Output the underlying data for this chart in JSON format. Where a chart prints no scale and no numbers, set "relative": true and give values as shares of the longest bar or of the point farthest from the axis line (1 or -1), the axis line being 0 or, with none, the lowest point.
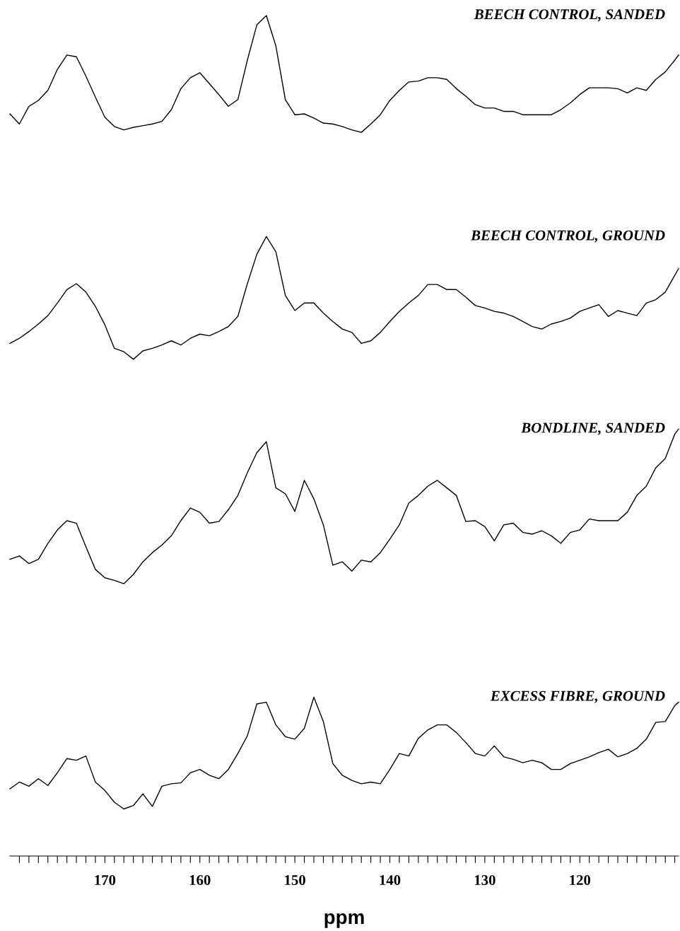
{
  "chart_data": {
    "type": "line",
    "relative": true,
    "tick_labels": "x",
    "xlim": [
      180,
      109.6
    ],
    "grid": false,
    "legend": false,
    "xlabel": "ppm",
    "xticks": [
      {
        "value": 179,
        "label": null
      },
      {
        "value": 178,
        "label": null
      },
      {
        "value": 177,
        "label": null
      },
      {
        "value": 176,
        "label": null
      },
      {
        "value": 175,
        "label": null
      },
      {
        "value": 174,
        "label": null
      },
      {
        "value": 173,
        "label": null
      },
      {
        "value": 172,
        "label": null
      },
      {
        "value": 171,
        "label": null
      },
      170,
      {
        "value": 169,
        "label": null
      },
      {
        "value": 168,
        "label": null
      },
      {
        "value": 167,
        "label": null
      },
      {
        "value": 166,
        "label": null
      },
      {
        "value": 165,
        "label": null
      },
      {
        "value": 164,
        "label": null
      },
      {
        "value": 163,
        "label": null
      },
      {
        "value": 162,
        "label": null
      },
      {
        "value": 161,
        "label": null
      },
      160,
      {
        "value": 159,
        "label": null
      },
      {
        "value": 158,
        "label": null
      },
      {
        "value": 157,
        "label": null
      },
      {
        "value": 156,
        "label": null
      },
      {
        "value": 155,
        "label": null
      },
      {
        "value": 154,
        "label": null
      },
      {
        "value": 153,
        "label": null
      },
      {
        "value": 152,
        "label": null
      },
      {
        "value": 151,
        "label": null
      },
      150,
      {
        "value": 149,
        "label": null
      },
      {
        "value": 148,
        "label": null
      },
      {
        "value": 147,
        "label": null
      },
      {
        "value": 146,
        "label": null
      },
      {
        "value": 145,
        "label": null
      },
      {
        "value": 144,
        "label": null
      },
      {
        "value": 143,
        "label": null
      },
      {
        "value": 142,
        "label": null
      },
      {
        "value": 141,
        "label": null
      },
      140,
      {
        "value": 139,
        "label": null
      },
      {
        "value": 138,
        "label": null
      },
      {
        "value": 137,
        "label": null
      },
      {
        "value": 136,
        "label": null
      },
      {
        "value": 135,
        "label": null
      },
      {
        "value": 134,
        "label": null
      },
      {
        "value": 133,
        "label": null
      },
      {
        "value": 132,
        "label": null
      },
      {
        "value": 131,
        "label": null
      },
      130,
      {
        "value": 129,
        "label": null
      },
      {
        "value": 128,
        "label": null
      },
      {
        "value": 127,
        "label": null
      },
      {
        "value": 126,
        "label": null
      },
      {
        "value": 125,
        "label": null
      },
      {
        "value": 124,
        "label": null
      },
      {
        "value": 123,
        "label": null
      },
      {
        "value": 122,
        "label": null
      },
      {
        "value": 121,
        "label": null
      },
      120,
      {
        "value": 119,
        "label": null
      },
      {
        "value": 118,
        "label": null
      },
      {
        "value": 117,
        "label": null
      },
      {
        "value": 116,
        "label": null
      },
      {
        "value": 115,
        "label": null
      },
      {
        "value": 114,
        "label": null
      },
      {
        "value": 113,
        "label": null
      },
      {
        "value": 112,
        "label": null
      },
      {
        "value": 111,
        "label": null
      },
      {
        "value": 110,
        "label": null
      }
    ],
    "x": [
      180,
      179,
      178,
      177,
      176,
      175,
      174,
      173,
      172,
      171,
      170,
      169,
      168,
      167,
      166,
      165,
      164,
      163,
      162,
      161,
      160,
      159,
      158,
      157,
      156,
      155,
      154,
      153,
      152,
      151,
      150,
      149,
      148,
      147,
      146,
      145,
      144,
      143,
      142,
      141,
      140,
      139,
      138,
      137,
      136,
      135,
      134,
      133,
      132,
      131,
      130,
      129,
      128,
      127,
      126,
      125,
      124,
      123,
      122,
      121,
      120,
      119,
      118,
      117,
      116,
      115,
      114,
      113,
      112,
      111,
      110,
      109.6
    ],
    "series": [
      {
        "name": "BEECH CONTROL, SANDED",
        "color": "#000000",
        "values": [
          0.883,
          0.871,
          0.892,
          0.899,
          0.911,
          0.936,
          0.953,
          0.951,
          0.928,
          0.903,
          0.879,
          0.868,
          0.864,
          0.867,
          0.869,
          0.871,
          0.874,
          0.888,
          0.913,
          0.926,
          0.932,
          0.919,
          0.906,
          0.892,
          0.9,
          0.947,
          0.989,
          1,
          0.964,
          0.9,
          0.882,
          0.883,
          0.878,
          0.872,
          0.871,
          0.868,
          0.864,
          0.861,
          0.871,
          0.882,
          0.899,
          0.911,
          0.921,
          0.922,
          0.926,
          0.926,
          0.924,
          0.913,
          0.904,
          0.894,
          0.89,
          0.89,
          0.886,
          0.886,
          0.882,
          0.882,
          0.882,
          0.882,
          0.888,
          0.896,
          0.906,
          0.914,
          0.914,
          0.914,
          0.913,
          0.908,
          0.914,
          0.911,
          0.924,
          0.933,
          0.947,
          0.953
        ]
      },
      {
        "name": "BEECH CONTROL, GROUND",
        "color": "#000000",
        "values": [
          0.61,
          0.616,
          0.624,
          0.633,
          0.643,
          0.658,
          0.674,
          0.681,
          0.671,
          0.654,
          0.632,
          0.604,
          0.6,
          0.591,
          0.601,
          0.604,
          0.608,
          0.613,
          0.608,
          0.616,
          0.621,
          0.619,
          0.624,
          0.63,
          0.642,
          0.681,
          0.716,
          0.737,
          0.719,
          0.667,
          0.649,
          0.658,
          0.658,
          0.646,
          0.636,
          0.627,
          0.623,
          0.61,
          0.613,
          0.623,
          0.636,
          0.648,
          0.658,
          0.667,
          0.68,
          0.68,
          0.674,
          0.674,
          0.665,
          0.655,
          0.652,
          0.648,
          0.646,
          0.642,
          0.636,
          0.63,
          0.627,
          0.633,
          0.636,
          0.64,
          0.648,
          0.652,
          0.656,
          0.642,
          0.649,
          0.646,
          0.643,
          0.658,
          0.662,
          0.671,
          0.691,
          0.699
        ]
      },
      {
        "name": "BONDLINE, SANDED",
        "color": "#000000",
        "values": [
          0.353,
          0.357,
          0.348,
          0.353,
          0.372,
          0.388,
          0.399,
          0.396,
          0.368,
          0.341,
          0.331,
          0.328,
          0.324,
          0.335,
          0.35,
          0.361,
          0.37,
          0.381,
          0.399,
          0.414,
          0.409,
          0.396,
          0.398,
          0.412,
          0.429,
          0.456,
          0.48,
          0.493,
          0.438,
          0.431,
          0.41,
          0.447,
          0.425,
          0.394,
          0.346,
          0.35,
          0.339,
          0.352,
          0.35,
          0.361,
          0.377,
          0.394,
          0.42,
          0.429,
          0.44,
          0.447,
          0.438,
          0.429,
          0.398,
          0.399,
          0.392,
          0.375,
          0.394,
          0.396,
          0.385,
          0.383,
          0.387,
          0.381,
          0.372,
          0.385,
          0.388,
          0.401,
          0.399,
          0.399,
          0.399,
          0.409,
          0.429,
          0.44,
          0.462,
          0.473,
          0.502,
          0.508
        ]
      },
      {
        "name": "EXCESS FIBRE, GROUND",
        "color": "#000000",
        "values": [
          0.08,
          0.088,
          0.083,
          0.092,
          0.084,
          0.099,
          0.116,
          0.114,
          0.119,
          0.088,
          0.078,
          0.064,
          0.056,
          0.06,
          0.074,
          0.059,
          0.083,
          0.086,
          0.087,
          0.099,
          0.103,
          0.096,
          0.092,
          0.103,
          0.122,
          0.143,
          0.181,
          0.183,
          0.156,
          0.142,
          0.139,
          0.152,
          0.189,
          0.16,
          0.11,
          0.096,
          0.09,
          0.086,
          0.088,
          0.086,
          0.103,
          0.122,
          0.119,
          0.14,
          0.15,
          0.156,
          0.156,
          0.147,
          0.135,
          0.122,
          0.119,
          0.131,
          0.118,
          0.115,
          0.111,
          0.114,
          0.111,
          0.103,
          0.103,
          0.11,
          0.114,
          0.118,
          0.123,
          0.127,
          0.118,
          0.122,
          0.128,
          0.139,
          0.159,
          0.16,
          0.179,
          0.183
        ]
      }
    ]
  }
}
